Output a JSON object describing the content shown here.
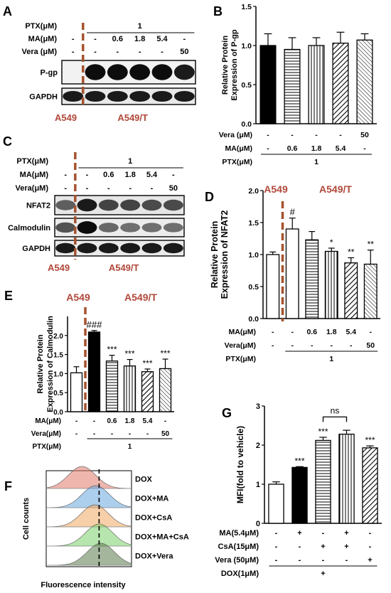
{
  "panel_labels": {
    "A": "A",
    "B": "B",
    "C": "C",
    "D": "D",
    "E": "E",
    "F": "F",
    "G": "G"
  },
  "colors": {
    "cell_label": "#b0483a",
    "dash_line": "#a5522e",
    "black_bar": "#000000",
    "blot_bg": "#111111"
  },
  "panel_a": {
    "rows": [
      {
        "label": "PTX(μM)",
        "values": [
          "",
          "1",
          "",
          "",
          ""
        ],
        "span_value": "1"
      },
      {
        "label": "MA(μM)",
        "values": [
          "-",
          "-",
          "0.6",
          "1.8",
          "5.4",
          "-"
        ]
      },
      {
        "label": "Vera (μM)",
        "values": [
          "-",
          "-",
          "-",
          "-",
          "-",
          "50"
        ]
      }
    ],
    "blots": [
      "P-gp",
      "GAPDH"
    ],
    "cells": [
      "A549",
      "A549/T"
    ]
  },
  "panel_c": {
    "rows": [
      {
        "label": "PTX(μM)",
        "span_value": "1"
      },
      {
        "label": "MA(μM)",
        "values": [
          "-",
          "-",
          "0.6",
          "1.8",
          "5.4",
          "-"
        ]
      },
      {
        "label": "Vera(μM)",
        "values": [
          "-",
          "-",
          "-",
          "-",
          "-",
          "50"
        ]
      }
    ],
    "blots": [
      "NFAT2",
      "Calmodulin",
      "GAPDH"
    ],
    "cells": [
      "A549",
      "A549/T"
    ]
  },
  "chart_data": [
    {
      "panel": "B",
      "type": "bar",
      "ylabel": "Relative Protein Expression of P-gp",
      "ylim": [
        0,
        1.5
      ],
      "yticks": [
        "0.0",
        "0.5",
        "1.0",
        "1.5"
      ],
      "values": [
        1.0,
        0.95,
        1.0,
        1.03,
        1.07
      ],
      "errors": [
        0.15,
        0.15,
        0.1,
        0.14,
        0.08
      ],
      "patterns": [
        "solid",
        "hlines",
        "vlines",
        "diag",
        "hatch-light"
      ],
      "table": [
        {
          "label": "Vera (μM)",
          "values": [
            "-",
            "-",
            "-",
            "-",
            "50"
          ]
        },
        {
          "label": "MA(μM)",
          "values": [
            "-",
            "0.6",
            "1.8",
            "5.4",
            "-"
          ]
        },
        {
          "label": "PTX(μM)",
          "span": "1"
        }
      ]
    },
    {
      "panel": "D",
      "type": "bar",
      "ylabel": "Relative Protein Expression of NFAT2",
      "ylim": [
        0,
        2.0
      ],
      "yticks": [
        "0.0",
        "0.5",
        "1.0",
        "1.5",
        "2.0"
      ],
      "values": [
        1.0,
        1.4,
        1.23,
        1.05,
        0.87,
        0.85
      ],
      "errors": [
        0.04,
        0.17,
        0.13,
        0.05,
        0.08,
        0.22
      ],
      "sig": [
        "",
        "#",
        "",
        "*",
        "**",
        "**"
      ],
      "patterns": [
        "open",
        "open",
        "hlines",
        "vlines",
        "diag",
        "hatch-light"
      ],
      "cells": [
        "A549",
        "A549/T"
      ],
      "table": [
        {
          "label": "MA(μM)",
          "values": [
            "-",
            "-",
            "0.6",
            "1.8",
            "5.4",
            "-"
          ]
        },
        {
          "label": "Vera(μM)",
          "values": [
            "-",
            "-",
            "-",
            "-",
            "-",
            "50"
          ]
        },
        {
          "label": "PTX(μM)",
          "span": "1"
        }
      ]
    },
    {
      "panel": "E",
      "type": "bar",
      "ylabel": "Relative Protein Expression of Calmodulin",
      "ylim": [
        0,
        2.5
      ],
      "yticks": [
        "0.0",
        "0.5",
        "1.0",
        "1.5",
        "2.0"
      ],
      "values": [
        1.02,
        2.09,
        1.33,
        1.2,
        1.05,
        1.13
      ],
      "errors": [
        0.16,
        0.04,
        0.15,
        0.17,
        0.07,
        0.25
      ],
      "sig": [
        "",
        "###",
        "***",
        "***",
        "***",
        "***"
      ],
      "patterns": [
        "open",
        "solid",
        "hlines",
        "vlines",
        "diag",
        "hatch-light"
      ],
      "cells": [
        "A549",
        "A549/T"
      ],
      "table": [
        {
          "label": "MA(μM)",
          "values": [
            "-",
            "-",
            "0.6",
            "1.8",
            "5.4",
            "-"
          ]
        },
        {
          "label": "Vera(μM)",
          "values": [
            "-",
            "-",
            "-",
            "-",
            "-",
            "50"
          ]
        },
        {
          "label": "PTX(μM)",
          "span": "1"
        }
      ]
    },
    {
      "panel": "G",
      "type": "bar",
      "ylabel": "MFI(fold to vehicle)",
      "ylim": [
        0,
        3
      ],
      "yticks": [
        "0",
        "1",
        "2",
        "3"
      ],
      "values": [
        1.0,
        1.43,
        2.12,
        2.28,
        1.93
      ],
      "errors": [
        0.06,
        0.02,
        0.08,
        0.1,
        0.05
      ],
      "sig": [
        "",
        "***",
        "***",
        "",
        "***"
      ],
      "bracket": {
        "from": 2,
        "to": 3,
        "text": "ns"
      },
      "patterns": [
        "open",
        "solid",
        "hlines",
        "vlines",
        "diag"
      ],
      "table": [
        {
          "label": "MA(5.4μM)",
          "values": [
            "-",
            "+",
            "-",
            "+",
            "-"
          ]
        },
        {
          "label": "CsA(15μM)",
          "values": [
            "-",
            "-",
            "+",
            "+",
            "-"
          ]
        },
        {
          "label": "Vera (50μM)",
          "values": [
            "-",
            "-",
            "-",
            "-",
            "+"
          ]
        },
        {
          "label": "DOX(1μM)",
          "span": "+"
        }
      ]
    },
    {
      "panel": "F",
      "type": "histogram-overlay",
      "ylabel": "Cell counts",
      "xlabel": "Fluorescence intensity",
      "series": [
        {
          "name": "DOX",
          "color": "#e07a6a"
        },
        {
          "name": "DOX+MA",
          "color": "#6aa8e0"
        },
        {
          "name": "DOX+CsA",
          "color": "#f0a860"
        },
        {
          "name": "DOX+MA+CsA",
          "color": "#7ad06a"
        },
        {
          "name": "DOX+Vera",
          "color": "#5a7a4a"
        }
      ]
    }
  ]
}
